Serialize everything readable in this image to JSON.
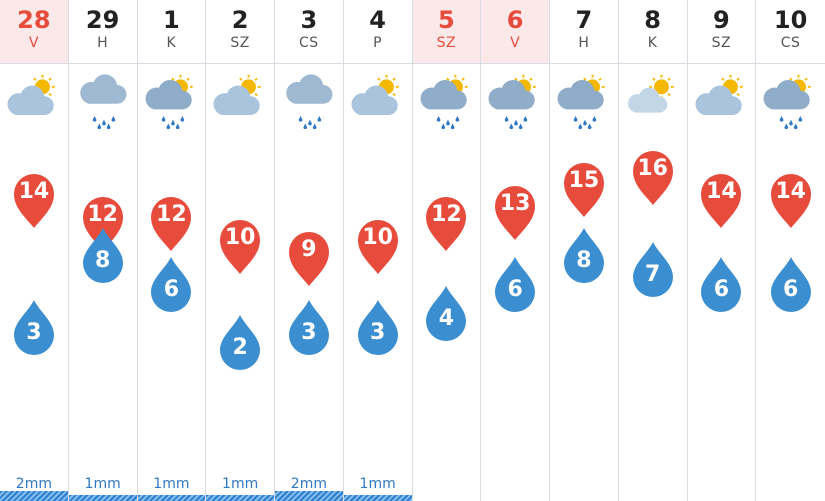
{
  "colors": {
    "weekend_text": "#e64b3c",
    "weekend_bg": "#fbe9e9",
    "max_pin": "#e64b3c",
    "min_drop": "#3b8fd0",
    "rain_text": "#2f78c4",
    "rain_bar": "#2a7fd4"
  },
  "days": [
    {
      "date": "28",
      "dow": "V",
      "weekend": true,
      "icon": "partly-sunny-icon",
      "max": "14",
      "min": "3",
      "rain": "2mm",
      "rain_mm": 2
    },
    {
      "date": "29",
      "dow": "H",
      "weekend": false,
      "icon": "rain-cloud-icon",
      "max": "12",
      "min": "8",
      "rain": "1mm",
      "rain_mm": 1
    },
    {
      "date": "1",
      "dow": "K",
      "weekend": false,
      "icon": "sun-shower-icon",
      "max": "12",
      "min": "6",
      "rain": "1mm",
      "rain_mm": 1
    },
    {
      "date": "2",
      "dow": "SZ",
      "weekend": false,
      "icon": "partly-sunny-icon",
      "max": "10",
      "min": "2",
      "rain": "1mm",
      "rain_mm": 1
    },
    {
      "date": "3",
      "dow": "CS",
      "weekend": false,
      "icon": "rain-cloud-icon",
      "max": "9",
      "min": "3",
      "rain": "2mm",
      "rain_mm": 2
    },
    {
      "date": "4",
      "dow": "P",
      "weekend": false,
      "icon": "partly-sunny-icon",
      "max": "10",
      "min": "3",
      "rain": "1mm",
      "rain_mm": 1
    },
    {
      "date": "5",
      "dow": "SZ",
      "weekend": true,
      "icon": "sun-shower-icon",
      "max": "12",
      "min": "4",
      "rain": "",
      "rain_mm": 0
    },
    {
      "date": "6",
      "dow": "V",
      "weekend": true,
      "icon": "sun-shower-icon",
      "max": "13",
      "min": "6",
      "rain": "",
      "rain_mm": 0
    },
    {
      "date": "7",
      "dow": "H",
      "weekend": false,
      "icon": "sun-shower-icon",
      "max": "15",
      "min": "8",
      "rain": "",
      "rain_mm": 0
    },
    {
      "date": "8",
      "dow": "K",
      "weekend": false,
      "icon": "mostly-sunny-icon",
      "max": "16",
      "min": "7",
      "rain": "",
      "rain_mm": 0
    },
    {
      "date": "9",
      "dow": "SZ",
      "weekend": false,
      "icon": "partly-sunny-icon",
      "max": "14",
      "min": "6",
      "rain": "",
      "rain_mm": 0
    },
    {
      "date": "10",
      "dow": "CS",
      "weekend": false,
      "icon": "sun-shower-icon",
      "max": "14",
      "min": "6",
      "rain": "",
      "rain_mm": 0
    }
  ]
}
